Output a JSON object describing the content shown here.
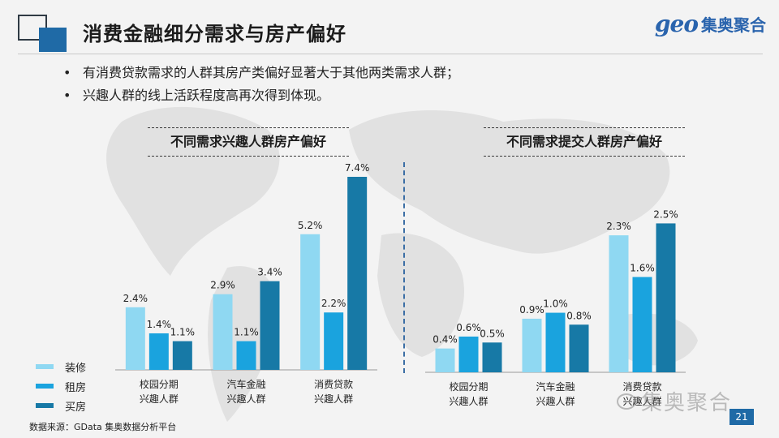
{
  "header": {
    "title": "消费金融细分需求与房产偏好",
    "logo_latin": "geo",
    "logo_cn": "集奥聚合"
  },
  "bullets": [
    "有消费贷款需求的人群其房产类偏好显著大于其他两类需求人群；",
    "兴趣人群的线上活跃程度高再次得到体现。"
  ],
  "legend": [
    {
      "label": "装修",
      "color": "#8fd8f2"
    },
    {
      "label": "租房",
      "color": "#1aa3de"
    },
    {
      "label": "买房",
      "color": "#1779a6"
    }
  ],
  "chart_data": [
    {
      "type": "bar",
      "title": "不同需求兴趣人群房产偏好",
      "categories": [
        "校园分期\n兴趣人群",
        "汽车金融\n兴趣人群",
        "消费贷款\n兴趣人群"
      ],
      "series": [
        {
          "name": "装修",
          "values": [
            2.4,
            2.9,
            5.2
          ],
          "labels": [
            "2.4%",
            "2.9%",
            "5.2%"
          ],
          "color": "#8fd8f2"
        },
        {
          "name": "租房",
          "values": [
            1.4,
            1.1,
            2.2
          ],
          "labels": [
            "1.4%",
            "1.1%",
            "2.2%"
          ],
          "color": "#1aa3de"
        },
        {
          "name": "买房",
          "values": [
            1.1,
            3.4,
            7.4
          ],
          "labels": [
            "1.1%",
            "3.4%",
            "7.4%"
          ],
          "color": "#1779a6"
        }
      ],
      "ylim": [
        0,
        7.4
      ],
      "grid": false
    },
    {
      "type": "bar",
      "title": "不同需求提交人群房产偏好",
      "categories": [
        "校园分期\n兴趣人群",
        "汽车金融\n兴趣人群",
        "消费贷款\n兴趣人群"
      ],
      "series": [
        {
          "name": "装修",
          "values": [
            0.4,
            0.9,
            2.3
          ],
          "labels": [
            "0.4%",
            "0.9%",
            "2.3%"
          ],
          "color": "#8fd8f2"
        },
        {
          "name": "租房",
          "values": [
            0.6,
            1.0,
            1.6
          ],
          "labels": [
            "0.6%",
            "1.0%",
            "1.6%"
          ],
          "color": "#1aa3de"
        },
        {
          "name": "买房",
          "values": [
            0.5,
            0.8,
            2.5
          ],
          "labels": [
            "0.5%",
            "0.8%",
            "2.5%"
          ],
          "color": "#1779a6"
        }
      ],
      "ylim": [
        0,
        3.5
      ],
      "grid": false
    }
  ],
  "source": "数据来源：GData 集奥数据分析平台",
  "watermark": "集奥聚合",
  "page_number": "21"
}
